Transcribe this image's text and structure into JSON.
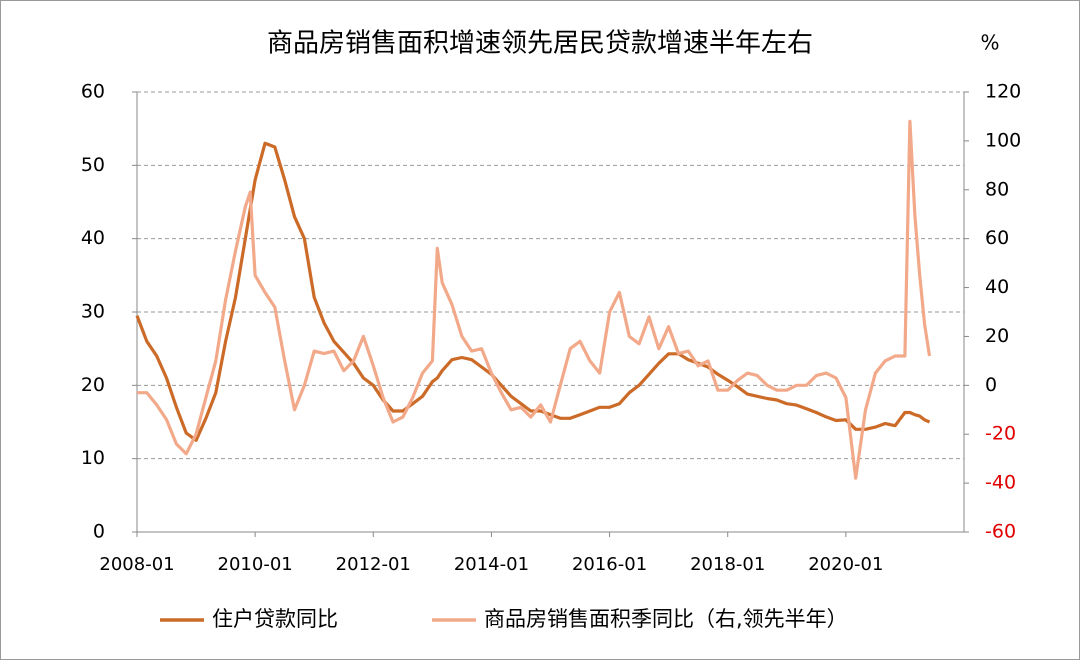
{
  "chart_data": {
    "type": "line",
    "title": "商品房销售面积增速领先居民贷款增速半年左右",
    "y2_unit": "%",
    "x": [
      "2008-01",
      "2008-03",
      "2008-05",
      "2008-07",
      "2008-09",
      "2008-11",
      "2009-01",
      "2009-03",
      "2009-05",
      "2009-07",
      "2009-09",
      "2009-11",
      "2009-12",
      "2010-01",
      "2010-03",
      "2010-05",
      "2010-07",
      "2010-09",
      "2010-11",
      "2011-01",
      "2011-03",
      "2011-05",
      "2011-07",
      "2011-09",
      "2011-11",
      "2012-01",
      "2012-03",
      "2012-05",
      "2012-07",
      "2012-09",
      "2012-11",
      "2013-01",
      "2013-02",
      "2013-03",
      "2013-05",
      "2013-07",
      "2013-09",
      "2013-11",
      "2014-01",
      "2014-03",
      "2014-05",
      "2014-07",
      "2014-09",
      "2014-11",
      "2015-01",
      "2015-03",
      "2015-05",
      "2015-07",
      "2015-09",
      "2015-11",
      "2016-01",
      "2016-03",
      "2016-05",
      "2016-07",
      "2016-09",
      "2016-11",
      "2017-01",
      "2017-03",
      "2017-05",
      "2017-07",
      "2017-09",
      "2017-11",
      "2018-01",
      "2018-03",
      "2018-05",
      "2018-07",
      "2018-09",
      "2018-11",
      "2019-01",
      "2019-03",
      "2019-05",
      "2019-07",
      "2019-09",
      "2019-11",
      "2020-01",
      "2020-03",
      "2020-05",
      "2020-07",
      "2020-09",
      "2020-11",
      "2021-01",
      "2021-02",
      "2021-03",
      "2021-04",
      "2021-05",
      "2021-06"
    ],
    "xlim": [
      "2008-01",
      "2022-01"
    ],
    "xticks": [
      "2008-01",
      "2010-01",
      "2012-01",
      "2014-01",
      "2016-01",
      "2018-01",
      "2020-01"
    ],
    "series": [
      {
        "name": "住户贷款同比",
        "color": "#cc6a28",
        "axis": "y",
        "values": [
          29.5,
          26,
          24,
          21,
          17,
          13.5,
          12.5,
          15.5,
          19,
          26,
          32,
          40,
          44,
          48,
          53,
          52.5,
          48,
          43,
          40,
          32,
          28.5,
          26,
          24.5,
          23,
          21,
          20,
          18,
          16.5,
          16.5,
          17.5,
          18.5,
          20.5,
          21,
          22,
          23.5,
          23.8,
          23.5,
          22.5,
          21.5,
          20,
          18.5,
          17.5,
          16.5,
          16.5,
          16,
          15.5,
          15.5,
          16,
          16.5,
          17,
          17,
          17.5,
          19,
          20,
          21.5,
          23,
          24.3,
          24.3,
          23.5,
          23,
          22.5,
          21.5,
          20.7,
          19.8,
          18.8,
          18.5,
          18.2,
          18,
          17.5,
          17.3,
          16.8,
          16.3,
          15.7,
          15.2,
          15.3,
          14,
          14,
          14.3,
          14.8,
          14.5,
          16.3,
          16.3,
          16,
          15.8,
          15.3,
          15
        ]
      },
      {
        "name": "商品房销售面积季同比（右,领先半年）",
        "color": "#f2a98a",
        "axis": "y2",
        "values": [
          -3,
          -3,
          -8,
          -14,
          -24,
          -28,
          -20,
          -5,
          10,
          35,
          55,
          73,
          79,
          45,
          38,
          32,
          10,
          -10,
          0,
          14,
          13,
          14,
          6,
          10,
          20,
          8,
          -5,
          -15,
          -13,
          -5,
          5,
          10,
          56,
          42,
          33,
          20,
          14,
          15,
          5,
          -3,
          -10,
          -9,
          -13,
          -8,
          -15,
          0,
          15,
          18,
          10,
          5,
          30,
          38,
          20,
          17,
          28,
          15,
          24,
          13,
          14,
          8,
          10,
          -2,
          -2,
          2,
          5,
          4,
          0,
          -2,
          -2,
          0,
          0,
          4,
          5,
          3,
          -5,
          -38,
          -10,
          5,
          10,
          12,
          12,
          108,
          70,
          45,
          25,
          12
        ]
      }
    ],
    "ylim": [
      0,
      60
    ],
    "yticks": [
      0,
      10,
      20,
      30,
      40,
      50,
      60
    ],
    "y2lim": [
      -60,
      120
    ],
    "y2ticks": [
      -60,
      -40,
      -20,
      0,
      20,
      40,
      60,
      80,
      100,
      120
    ],
    "y2_negative_tick_color": "#e00000",
    "grid": true
  }
}
